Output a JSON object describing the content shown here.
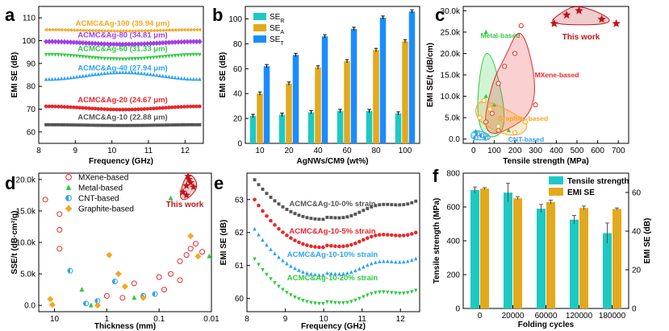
{
  "colors": {
    "gray": "#555555",
    "red": "#e8272a",
    "blue": "#2ea3f2",
    "green": "#2ecc40",
    "purple": "#a040e8",
    "orange": "#f5a623",
    "teal": "#1ec9c3",
    "gold": "#e3a91d",
    "bright_blue": "#1a8cff",
    "dark_red": "#c0161a"
  },
  "chart_data": [
    {
      "panel": "a",
      "type": "line",
      "xlabel": "Frequency (GHz)",
      "ylabel": "EMI SE (dB)",
      "xlim": [
        8,
        12.5
      ],
      "ylim": [
        55,
        115
      ],
      "xticks": [
        "8",
        "9",
        "10",
        "11",
        "12"
      ],
      "yticks": [
        "60",
        "70",
        "80",
        "90",
        "100",
        "110"
      ],
      "series": [
        {
          "name": "ACMC&Ag-100 (39.94 μm)",
          "marker": "triangle-left",
          "color": "#f5a623",
          "base": 104.5,
          "amp": 0.3
        },
        {
          "name": "ACMC&Ag-80 (34.81 μm)",
          "marker": "diamond",
          "color": "#a040e8",
          "base": 99.0,
          "amp": 0.6
        },
        {
          "name": "ACMC&Ag-60 (31.33 μm)",
          "marker": "triangle-down",
          "color": "#2ecc40",
          "base": 93.0,
          "amp": 1.0
        },
        {
          "name": "ACMC&Ag-40 (27.94 μm)",
          "marker": "triangle-up",
          "color": "#2ea3f2",
          "base": 84.5,
          "amp": 1.5
        },
        {
          "name": "ACMC&Ag-20 (24.67 μm)",
          "marker": "circle",
          "color": "#e8272a",
          "base": 70.5,
          "amp": 0.7
        },
        {
          "name": "ACMC&Ag-10 (22.88 μm)",
          "marker": "square",
          "color": "#555555",
          "base": 63.0,
          "amp": 0.4
        }
      ]
    },
    {
      "panel": "b",
      "type": "bar",
      "xlabel": "AgNWs/CM9 (wt%)",
      "ylabel": "EMI SE (dB)",
      "categories": [
        "10",
        "20",
        "40",
        "60",
        "80",
        "100"
      ],
      "ylim": [
        0,
        110
      ],
      "yticks": [
        "0",
        "20",
        "40",
        "60",
        "80",
        "100"
      ],
      "series": [
        {
          "name": "SE",
          "sub": "R",
          "color": "#1ec9c3",
          "values": [
            22,
            23,
            25,
            26,
            26,
            24
          ]
        },
        {
          "name": "SE",
          "sub": "A",
          "color": "#e3a91d",
          "values": [
            40,
            48,
            61,
            66,
            75,
            82
          ]
        },
        {
          "name": "SE",
          "sub": "T",
          "color": "#1a8cff",
          "values": [
            62,
            71,
            86,
            92,
            101,
            106
          ]
        }
      ]
    },
    {
      "panel": "c",
      "type": "scatter",
      "xlabel": "Tensile strength (MPa)",
      "ylabel": "EMI SE/t (dB/cm)",
      "xlim": [
        -50,
        750
      ],
      "ylim": [
        -1000,
        31000
      ],
      "xticks": [
        "0",
        "100",
        "200",
        "300",
        "400",
        "500",
        "600",
        "700"
      ],
      "yticks": [
        "0.0",
        "5.0k",
        "10.0k",
        "15.0k",
        "20.0k",
        "25.0k",
        "30.0k"
      ],
      "regions": [
        {
          "name": "Metal-based",
          "color": "#2ecc40",
          "points": [
            [
              10,
              1800
            ],
            [
              60,
              25000
            ],
            [
              60,
              10000
            ],
            [
              100,
              8000
            ],
            [
              170,
              2000
            ]
          ]
        },
        {
          "name": "MXene-based",
          "color": "#e8272a",
          "points": [
            [
              60,
              4000
            ],
            [
              120,
              13000
            ],
            [
              150,
              17000
            ],
            [
              200,
              20000
            ],
            [
              230,
              26500
            ],
            [
              300,
              8000
            ],
            [
              120,
              2000
            ],
            [
              90,
              6000
            ]
          ]
        },
        {
          "name": "Graphite-based",
          "color": "#f5a623",
          "points": [
            [
              30,
              5000
            ],
            [
              50,
              9000
            ],
            [
              120,
              3000
            ],
            [
              200,
              1500
            ],
            [
              250,
              4000
            ],
            [
              80,
              7000
            ]
          ]
        },
        {
          "name": "CNT-based",
          "color": "#2ea3f2",
          "points": [
            [
              10,
              300
            ],
            [
              20,
              1200
            ],
            [
              40,
              800
            ],
            [
              60,
              200
            ]
          ]
        }
      ],
      "this_work": {
        "name": "This work",
        "color": "#c0161a",
        "points": [
          [
            390,
            27000
          ],
          [
            450,
            29000
          ],
          [
            510,
            30000
          ],
          [
            620,
            28000
          ],
          [
            690,
            27000
          ]
        ]
      }
    },
    {
      "panel": "d",
      "type": "scatter",
      "xlabel": "Thickness (mm)",
      "ylabel": "SSE/t (dB·cm²/g)",
      "xscale": "log-reversed",
      "xlim": [
        20,
        0.01
      ],
      "ylim": [
        -1000,
        21000
      ],
      "xticks": [
        "10",
        "1",
        "0.1",
        "0.01"
      ],
      "yticks": [
        "0.0",
        "5.0k",
        "10.0k",
        "15.0k",
        "20.0k"
      ],
      "series": [
        {
          "name": "MXene-based",
          "marker": "circle",
          "color": "#e8272a",
          "points": [
            [
              15,
              16800
            ],
            [
              8,
              14500
            ],
            [
              8,
              12000
            ],
            [
              8,
              9000
            ],
            [
              1,
              1500
            ],
            [
              0.3,
              3500
            ],
            [
              0.1,
              4500
            ],
            [
              0.06,
              5000
            ],
            [
              0.04,
              7000
            ],
            [
              0.03,
              8000
            ],
            [
              0.025,
              9000
            ],
            [
              0.02,
              9800
            ],
            [
              0.015,
              8500
            ],
            [
              0.04,
              4000
            ],
            [
              0.08,
              2500
            ],
            [
              0.2,
              1500
            ],
            [
              0.5,
              1200
            ]
          ]
        },
        {
          "name": "Metal-based",
          "marker": "triangle",
          "color": "#2ecc40",
          "points": [
            [
              3,
              2500
            ],
            [
              2,
              0
            ],
            [
              0.3,
              1200
            ],
            [
              0.06,
              17000
            ],
            [
              0.011,
              7800
            ]
          ]
        },
        {
          "name": "CNT-based",
          "marker": "half-circle",
          "color": "#2ea3f2",
          "points": [
            [
              5,
              5500
            ],
            [
              2.5,
              300
            ],
            [
              1.5,
              700
            ],
            [
              0.7,
              3800
            ],
            [
              0.2,
              1500
            ],
            [
              0.12,
              1800
            ]
          ]
        },
        {
          "name": "Graphite-based",
          "marker": "diamond",
          "color": "#f5a623",
          "points": [
            [
              12,
              1000
            ],
            [
              11,
              100
            ],
            [
              1.5,
              0
            ],
            [
              0.9,
              8000
            ],
            [
              0.6,
              5000
            ],
            [
              0.45,
              3000
            ],
            [
              0.2,
              1200
            ],
            [
              0.025,
              11000
            ],
            [
              0.018,
              7800
            ]
          ]
        }
      ],
      "this_work": {
        "name": "This work",
        "color": "#c0161a",
        "points": [
          [
            0.035,
            18000
          ],
          [
            0.03,
            19000
          ],
          [
            0.027,
            20000
          ],
          [
            0.025,
            19500
          ],
          [
            0.022,
            18800
          ],
          [
            0.03,
            17500
          ],
          [
            0.028,
            20500
          ]
        ]
      }
    },
    {
      "panel": "e",
      "type": "line",
      "xlabel": "Frequency (GHz)",
      "ylabel": "EMI SE (dB)",
      "xlim": [
        8,
        12.5
      ],
      "ylim": [
        59.6,
        63.8
      ],
      "xticks": [
        "8",
        "9",
        "10",
        "11",
        "12"
      ],
      "yticks": [
        "60",
        "61",
        "62",
        "63"
      ],
      "series": [
        {
          "name": "ACMC&Ag-10-0% strain",
          "marker": "square",
          "color": "#555555",
          "start": 63.6,
          "floor": 62.4,
          "end": 63.0
        },
        {
          "name": "ACMC&Ag-10-5% strain",
          "marker": "circle",
          "color": "#e8272a",
          "start": 63.0,
          "floor": 61.55,
          "end": 62.05
        },
        {
          "name": "ACMC&Ag-10-10% strain",
          "marker": "triangle-up",
          "color": "#2ea3f2",
          "start": 62.1,
          "floor": 60.7,
          "end": 61.25
        },
        {
          "name": "ACMC&Ag-10-20% strain",
          "marker": "triangle-down",
          "color": "#2ecc40",
          "start": 61.2,
          "floor": 59.85,
          "end": 60.3
        }
      ]
    },
    {
      "panel": "f",
      "type": "bar",
      "xlabel": "Folding cycles",
      "ylabel": "Tensile strength (MPa)",
      "y2label": "EMI SE (dB)",
      "categories": [
        "0",
        "20000",
        "60000",
        "120000",
        "180000"
      ],
      "ylim": [
        0,
        800
      ],
      "y2lim": [
        0,
        70
      ],
      "yticks": [
        "0",
        "200",
        "400",
        "600",
        "800"
      ],
      "y2ticks": [
        "0",
        "20",
        "40",
        "60"
      ],
      "series": [
        {
          "name": "Tensile strength",
          "axis": "left",
          "color": "#1ec9c3",
          "values": [
            700,
            685,
            590,
            525,
            445
          ],
          "err": [
            18,
            55,
            25,
            25,
            60
          ]
        },
        {
          "name": "EMI SE",
          "axis": "right",
          "color": "#e3a91d",
          "values": [
            62,
            57,
            55,
            52,
            51.5
          ],
          "err": [
            0.5,
            0.8,
            1.0,
            1.0,
            0.5
          ]
        }
      ]
    }
  ]
}
